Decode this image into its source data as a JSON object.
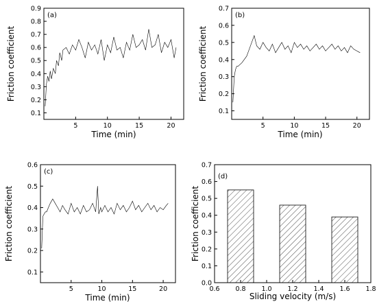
{
  "chart_data": [
    {
      "panel": "(a)",
      "type": "line",
      "xlabel": "Time (min)",
      "ylabel": "Friction coefficient",
      "xlim": [
        0,
        22
      ],
      "ylim": [
        0.05,
        0.9
      ],
      "x_ticks": [
        5,
        10,
        15,
        20
      ],
      "y_ticks": [
        0.1,
        0.2,
        0.3,
        0.4,
        0.5,
        0.6,
        0.7,
        0.8,
        0.9
      ],
      "grid": false,
      "series": [
        {
          "x": [
            0.2,
            0.4,
            0.6,
            0.8,
            1.0,
            1.2,
            1.5,
            1.8,
            2.0,
            2.3,
            2.5,
            2.8,
            3.0,
            3.5,
            4.0,
            4.5,
            5.0,
            5.5,
            6.0,
            6.5,
            7.0,
            7.5,
            8.0,
            8.5,
            9.0,
            9.5,
            10.0,
            10.5,
            11.0,
            11.5,
            12.0,
            12.5,
            13.0,
            13.5,
            14.0,
            14.5,
            15.0,
            15.5,
            16.0,
            16.5,
            17.0,
            17.5,
            18.0,
            18.5,
            19.0,
            19.5,
            20.0,
            20.5,
            20.8
          ],
          "y": [
            0.15,
            0.32,
            0.38,
            0.34,
            0.42,
            0.36,
            0.44,
            0.4,
            0.5,
            0.46,
            0.56,
            0.5,
            0.58,
            0.6,
            0.55,
            0.62,
            0.58,
            0.66,
            0.6,
            0.52,
            0.64,
            0.58,
            0.62,
            0.55,
            0.66,
            0.5,
            0.62,
            0.56,
            0.68,
            0.58,
            0.6,
            0.52,
            0.64,
            0.58,
            0.7,
            0.6,
            0.62,
            0.66,
            0.58,
            0.74,
            0.6,
            0.62,
            0.7,
            0.56,
            0.64,
            0.6,
            0.66,
            0.52,
            0.6
          ]
        }
      ]
    },
    {
      "panel": "(b)",
      "type": "line",
      "xlabel": "Time (min)",
      "ylabel": "Friction coefficient",
      "xlim": [
        0,
        22
      ],
      "ylim": [
        0.05,
        0.7
      ],
      "x_ticks": [
        5,
        10,
        15,
        20
      ],
      "y_ticks": [
        0.1,
        0.2,
        0.3,
        0.4,
        0.5,
        0.6,
        0.7
      ],
      "grid": false,
      "series": [
        {
          "x": [
            0.2,
            0.4,
            0.6,
            0.8,
            1.0,
            1.3,
            1.6,
            2.0,
            2.4,
            2.8,
            3.2,
            3.6,
            4.0,
            4.5,
            5.0,
            5.5,
            6.0,
            6.5,
            7.0,
            7.5,
            8.0,
            8.5,
            9.0,
            9.5,
            10.0,
            10.5,
            11.0,
            11.5,
            12.0,
            12.5,
            13.0,
            13.5,
            14.0,
            14.5,
            15.0,
            15.5,
            16.0,
            16.5,
            17.0,
            17.5,
            18.0,
            18.5,
            19.0,
            19.5,
            20.0,
            20.5
          ],
          "y": [
            0.15,
            0.3,
            0.34,
            0.36,
            0.36,
            0.37,
            0.38,
            0.4,
            0.42,
            0.46,
            0.5,
            0.54,
            0.48,
            0.46,
            0.5,
            0.47,
            0.45,
            0.49,
            0.44,
            0.47,
            0.5,
            0.46,
            0.48,
            0.44,
            0.5,
            0.47,
            0.49,
            0.46,
            0.48,
            0.45,
            0.47,
            0.49,
            0.46,
            0.48,
            0.45,
            0.47,
            0.49,
            0.46,
            0.48,
            0.45,
            0.47,
            0.44,
            0.48,
            0.46,
            0.45,
            0.44
          ]
        }
      ]
    },
    {
      "panel": "(c)",
      "type": "line",
      "xlabel": "Time (min)",
      "ylabel": "Friction coefficient",
      "xlim": [
        0,
        22
      ],
      "ylim": [
        0.05,
        0.6
      ],
      "x_ticks": [
        5,
        10,
        15,
        20
      ],
      "y_ticks": [
        0.1,
        0.2,
        0.3,
        0.4,
        0.5,
        0.6
      ],
      "grid": false,
      "series": [
        {
          "x": [
            0.2,
            0.4,
            0.6,
            0.8,
            1.0,
            1.3,
            1.6,
            2.0,
            2.4,
            2.8,
            3.2,
            3.6,
            4.0,
            4.5,
            5.0,
            5.5,
            6.0,
            6.5,
            7.0,
            7.5,
            8.0,
            8.5,
            9.0,
            9.3,
            9.5,
            9.8,
            10.0,
            10.5,
            11.0,
            11.5,
            12.0,
            12.5,
            13.0,
            13.5,
            14.0,
            14.5,
            15.0,
            15.5,
            16.0,
            16.5,
            17.0,
            17.5,
            18.0,
            18.5,
            19.0,
            19.5,
            20.0,
            20.5,
            20.8
          ],
          "y": [
            0.21,
            0.36,
            0.37,
            0.38,
            0.38,
            0.4,
            0.42,
            0.44,
            0.42,
            0.4,
            0.38,
            0.41,
            0.39,
            0.37,
            0.42,
            0.38,
            0.4,
            0.37,
            0.41,
            0.38,
            0.39,
            0.42,
            0.38,
            0.5,
            0.37,
            0.4,
            0.38,
            0.41,
            0.38,
            0.4,
            0.37,
            0.42,
            0.39,
            0.41,
            0.38,
            0.4,
            0.43,
            0.39,
            0.41,
            0.38,
            0.4,
            0.42,
            0.39,
            0.41,
            0.38,
            0.4,
            0.39,
            0.41,
            0.42
          ]
        }
      ]
    },
    {
      "panel": "(d)",
      "type": "bar",
      "xlabel": "Sliding velocity (m/s)",
      "ylabel": "Friction coefficient",
      "xlim": [
        0.6,
        1.8
      ],
      "ylim": [
        0.0,
        0.7
      ],
      "x_ticks": [
        0.6,
        0.8,
        1.0,
        1.2,
        1.4,
        1.6,
        1.8
      ],
      "y_ticks": [
        0.0,
        0.1,
        0.2,
        0.3,
        0.4,
        0.5,
        0.6,
        0.7
      ],
      "grid": false,
      "bar_fill": "hatched",
      "categories": [
        0.8,
        1.2,
        1.6
      ],
      "values": [
        0.55,
        0.46,
        0.39
      ]
    }
  ]
}
